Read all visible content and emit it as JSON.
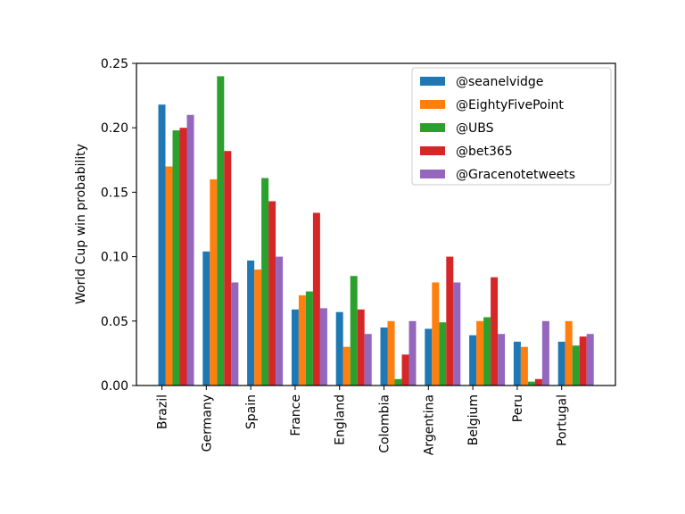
{
  "chart_data": {
    "type": "bar",
    "ylabel": "World Cup win probability",
    "xlabel": "",
    "ylim": [
      0,
      0.25
    ],
    "yticks": [
      "0.00",
      "0.05",
      "0.10",
      "0.15",
      "0.20",
      "0.25"
    ],
    "yticks_values": [
      0,
      0.05,
      0.1,
      0.15,
      0.2,
      0.25
    ],
    "grid": false,
    "legend_position": "top-right",
    "categories": [
      "Brazil",
      "Germany",
      "Spain",
      "France",
      "England",
      "Colombia",
      "Argentina",
      "Belgium",
      "Peru",
      "Portugal"
    ],
    "series": [
      {
        "name": "@seanelvidge",
        "color": "#1f77b4",
        "values": [
          0.218,
          0.104,
          0.097,
          0.059,
          0.057,
          0.045,
          0.044,
          0.039,
          0.034,
          0.034
        ]
      },
      {
        "name": "@EightyFivePoint",
        "color": "#ff7f0e",
        "values": [
          0.17,
          0.16,
          0.09,
          0.07,
          0.03,
          0.05,
          0.08,
          0.05,
          0.03,
          0.05
        ]
      },
      {
        "name": "@UBS",
        "color": "#2ca02c",
        "values": [
          0.198,
          0.24,
          0.161,
          0.073,
          0.085,
          0.005,
          0.049,
          0.053,
          0.003,
          0.031
        ]
      },
      {
        "name": "@bet365",
        "color": "#d62728",
        "values": [
          0.2,
          0.182,
          0.143,
          0.134,
          0.059,
          0.024,
          0.1,
          0.084,
          0.005,
          0.038
        ]
      },
      {
        "name": "@Gracenotetweets",
        "color": "#9467bd",
        "values": [
          0.21,
          0.08,
          0.1,
          0.06,
          0.04,
          0.05,
          0.08,
          0.04,
          0.05,
          0.04
        ]
      }
    ]
  }
}
